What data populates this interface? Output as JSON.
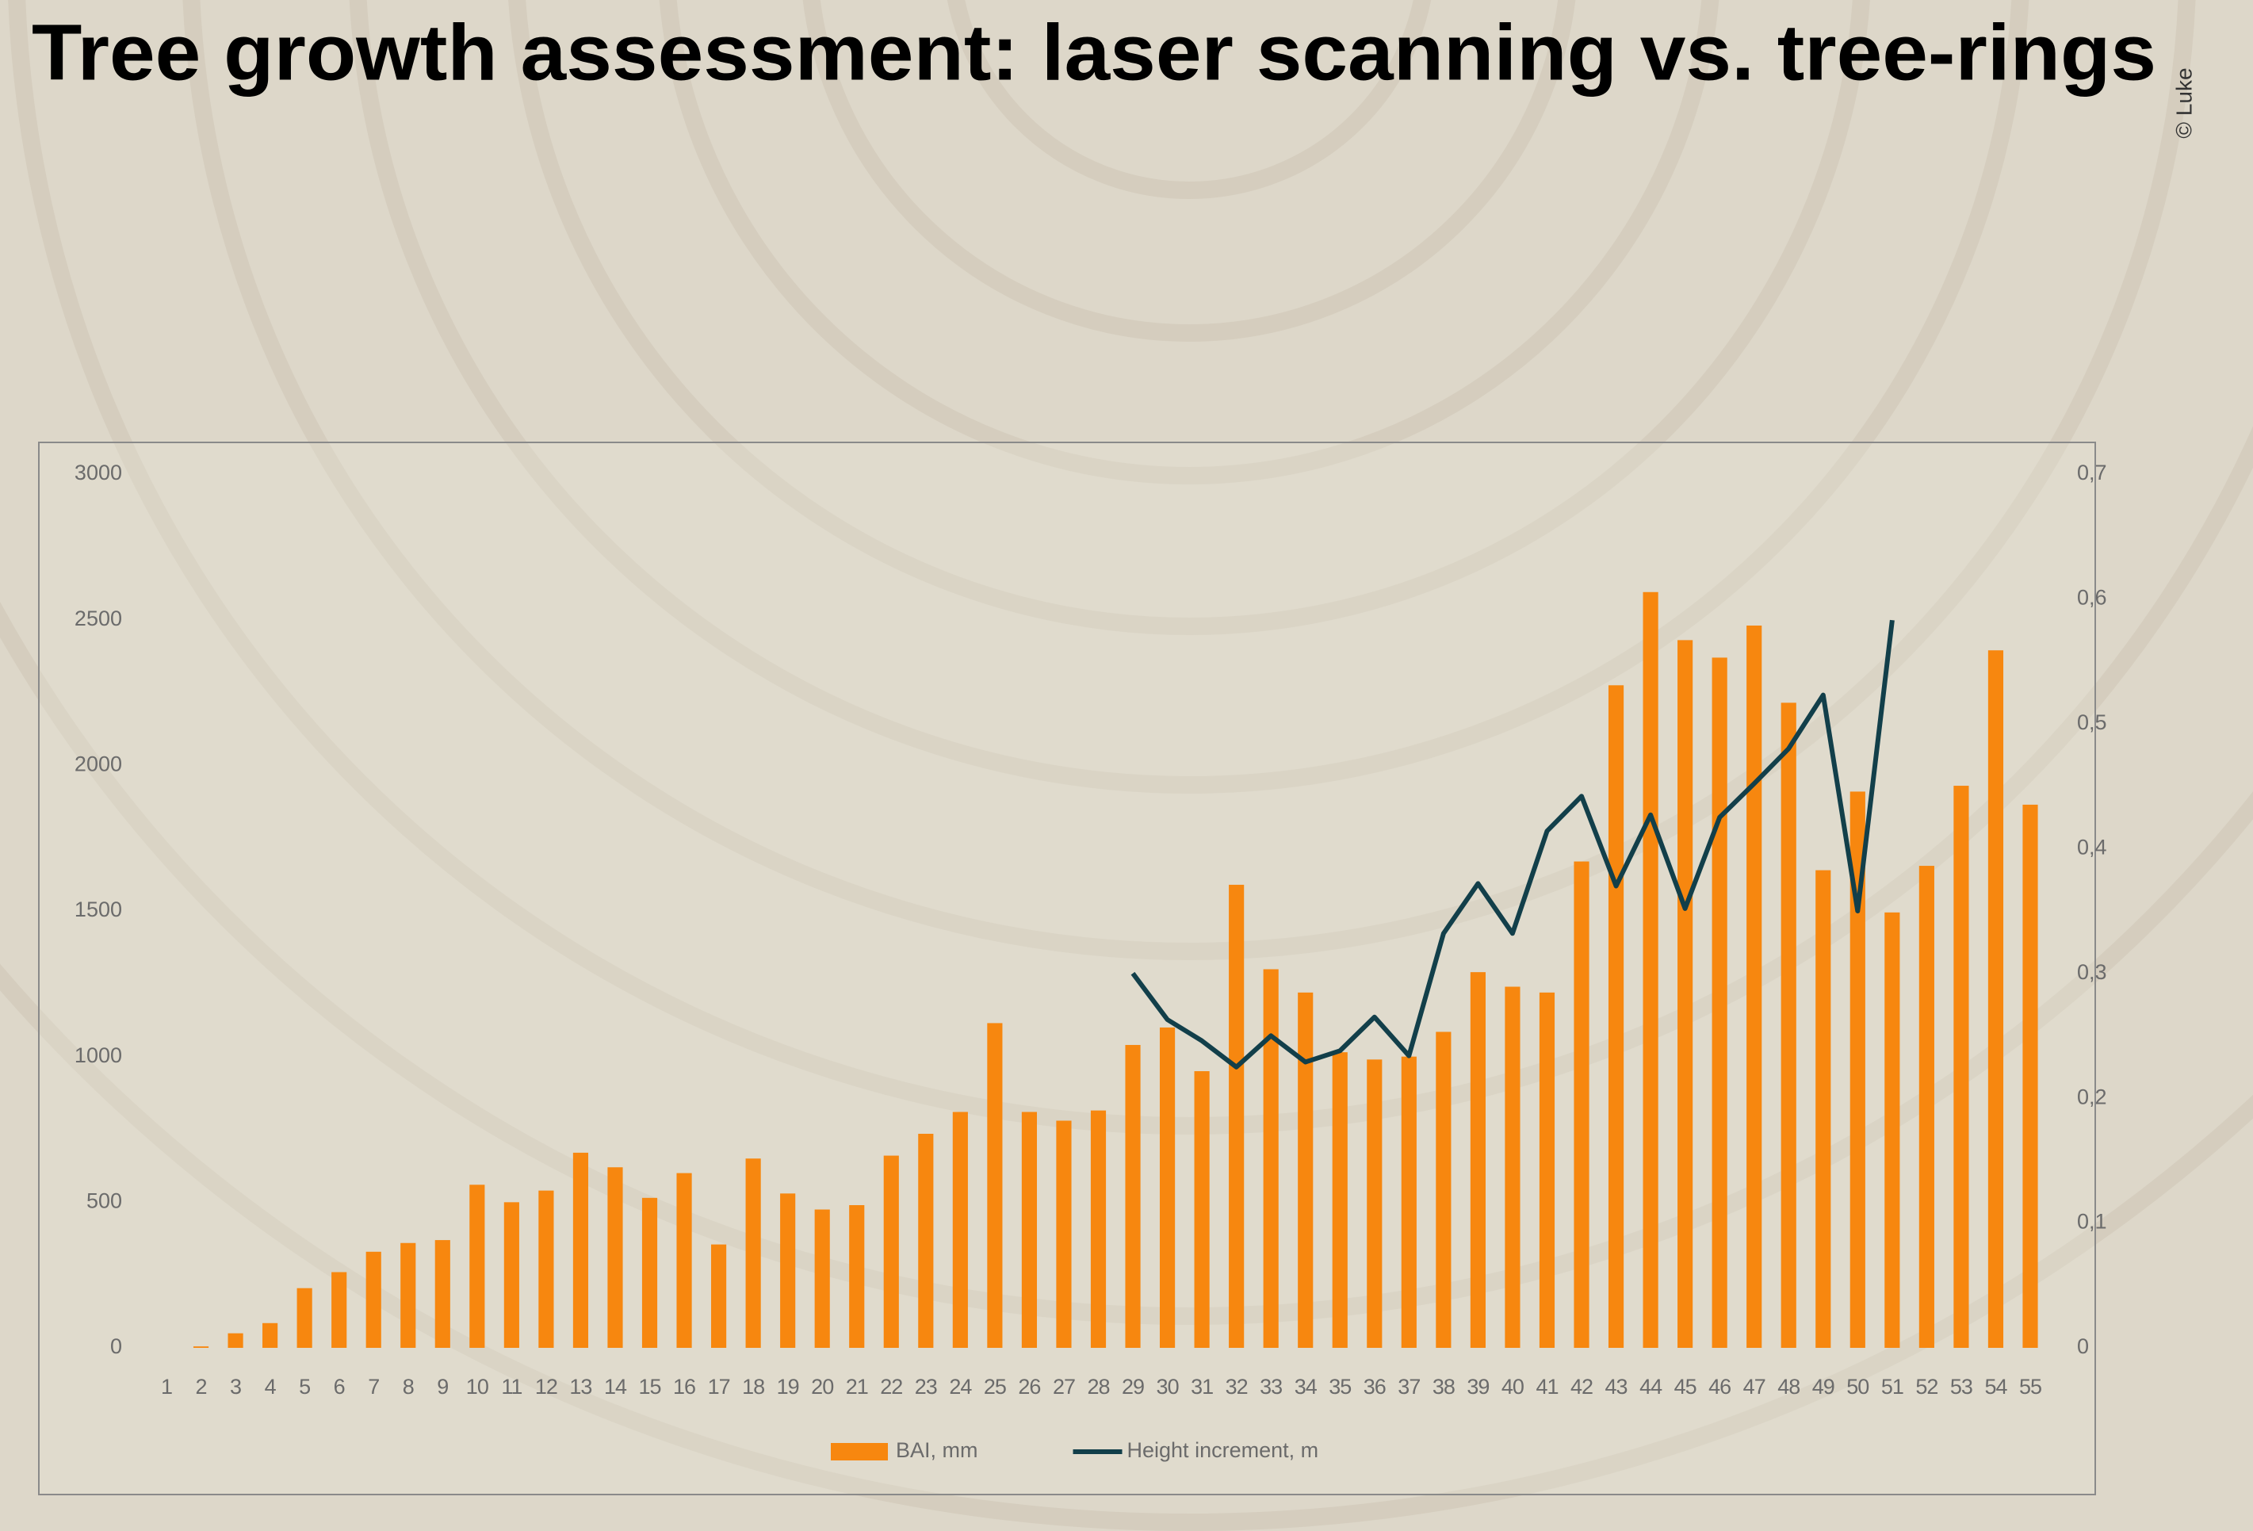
{
  "chart_data": {
    "type": "bar-line",
    "title": "Tree growth assessment: laser scanning vs. tree-rings",
    "credit": "© Luke",
    "categories": [
      "1",
      "2",
      "3",
      "4",
      "5",
      "6",
      "7",
      "8",
      "9",
      "10",
      "11",
      "12",
      "13",
      "14",
      "15",
      "16",
      "17",
      "18",
      "19",
      "20",
      "21",
      "22",
      "23",
      "24",
      "25",
      "26",
      "27",
      "28",
      "29",
      "30",
      "31",
      "32",
      "33",
      "34",
      "35",
      "36",
      "37",
      "38",
      "39",
      "40",
      "41",
      "42",
      "43",
      "44",
      "45",
      "46",
      "47",
      "48",
      "49",
      "50",
      "51",
      "52",
      "53",
      "54",
      "55"
    ],
    "series": [
      {
        "name": "BAI, mm",
        "color": "#f7870f",
        "type": "bar",
        "values": [
          0,
          5,
          50,
          85,
          205,
          260,
          330,
          360,
          370,
          560,
          500,
          540,
          670,
          620,
          515,
          600,
          355,
          650,
          530,
          475,
          490,
          660,
          735,
          810,
          1115,
          810,
          780,
          815,
          1040,
          1100,
          950,
          1590,
          1300,
          1220,
          1015,
          990,
          1000,
          1085,
          1290,
          1240,
          1220,
          1670,
          2275,
          2595,
          2430,
          2370,
          2480,
          2215,
          1640,
          1910,
          1495,
          1655,
          1930,
          2395,
          1865
        ]
      },
      {
        "name": "Height increment, m",
        "color": "#123f4a",
        "type": "line",
        "axis": "y2",
        "values": [
          null,
          null,
          null,
          null,
          null,
          null,
          null,
          null,
          null,
          null,
          null,
          null,
          null,
          null,
          null,
          null,
          null,
          null,
          null,
          null,
          null,
          null,
          null,
          null,
          null,
          null,
          null,
          null,
          0.3,
          0.263,
          0.246,
          0.225,
          0.25,
          0.229,
          0.238,
          0.265,
          0.234,
          0.332,
          0.372,
          0.332,
          0.414,
          0.442,
          0.37,
          0.427,
          0.352,
          0.425,
          0.452,
          0.48,
          0.523,
          0.35,
          0.583,
          null,
          null,
          null,
          null
        ]
      }
    ],
    "ylim": [
      0,
      3000
    ],
    "yticks": [
      0,
      500,
      1000,
      1500,
      2000,
      2500,
      3000
    ],
    "y2lim": [
      0,
      0.7
    ],
    "y2ticks": [
      0,
      {
        "value": 0.1,
        "label": "0,1"
      },
      {
        "value": 0.2,
        "label": "0,2"
      },
      {
        "value": 0.3,
        "label": "0,3"
      },
      {
        "value": 0.4,
        "label": "0,4"
      },
      {
        "value": 0.5,
        "label": "0,5"
      },
      {
        "value": 0.6,
        "label": "0,6"
      },
      {
        "value": 0.7,
        "label": "0,7"
      }
    ],
    "legend": "bottom"
  }
}
